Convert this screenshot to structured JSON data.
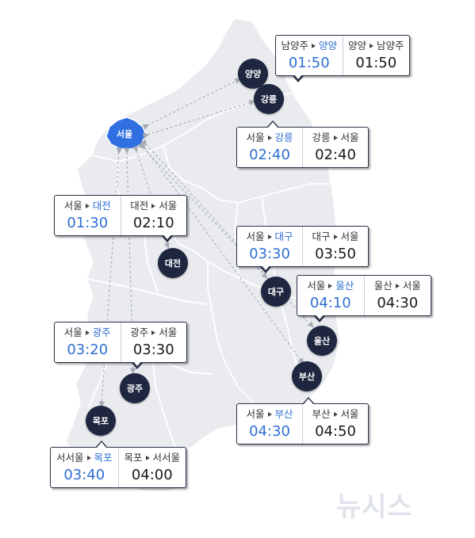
{
  "colors": {
    "land": "#e9ebef",
    "border": "#ffffff",
    "seoul_fill": "#2f6fe0",
    "city_pin": "#1f2740",
    "destination_text": "#2e6fd2",
    "arrow": "#a6abb5"
  },
  "origin": {
    "label": "서울"
  },
  "cities": [
    {
      "id": "yangyang",
      "label": "양양"
    },
    {
      "id": "gangneung",
      "label": "강릉"
    },
    {
      "id": "daejeon",
      "label": "대전"
    },
    {
      "id": "daegu",
      "label": "대구"
    },
    {
      "id": "ulsan",
      "label": "울산"
    },
    {
      "id": "busan",
      "label": "부산"
    },
    {
      "id": "gwangju",
      "label": "광주"
    },
    {
      "id": "mokpo",
      "label": "목포"
    }
  ],
  "callouts": [
    {
      "id": "yangyang",
      "outbound": {
        "from": "남양주",
        "to": "양양",
        "time": "01:50"
      },
      "inbound": {
        "from": "양양",
        "to": "남양주",
        "time": "01:50"
      }
    },
    {
      "id": "gangneung",
      "outbound": {
        "from": "서울",
        "to": "강릉",
        "time": "02:40"
      },
      "inbound": {
        "from": "강릉",
        "to": "서울",
        "time": "02:40"
      }
    },
    {
      "id": "daejeon",
      "outbound": {
        "from": "서울",
        "to": "대전",
        "time": "01:30"
      },
      "inbound": {
        "from": "대전",
        "to": "서울",
        "time": "02:10"
      }
    },
    {
      "id": "daegu",
      "outbound": {
        "from": "서울",
        "to": "대구",
        "time": "03:30"
      },
      "inbound": {
        "from": "대구",
        "to": "서울",
        "time": "03:50"
      }
    },
    {
      "id": "ulsan",
      "outbound": {
        "from": "서울",
        "to": "울산",
        "time": "04:10"
      },
      "inbound": {
        "from": "울산",
        "to": "서울",
        "time": "04:30"
      }
    },
    {
      "id": "gwangju",
      "outbound": {
        "from": "서울",
        "to": "광주",
        "time": "03:20"
      },
      "inbound": {
        "from": "광주",
        "to": "서울",
        "time": "03:30"
      }
    },
    {
      "id": "busan",
      "outbound": {
        "from": "서울",
        "to": "부산",
        "time": "04:30"
      },
      "inbound": {
        "from": "부산",
        "to": "서울",
        "time": "04:50"
      }
    },
    {
      "id": "mokpo",
      "outbound": {
        "from": "서서울",
        "to": "목포",
        "time": "03:40"
      },
      "inbound": {
        "from": "목포",
        "to": "서서울",
        "time": "04:00"
      }
    }
  ],
  "watermark": "뉴시스"
}
